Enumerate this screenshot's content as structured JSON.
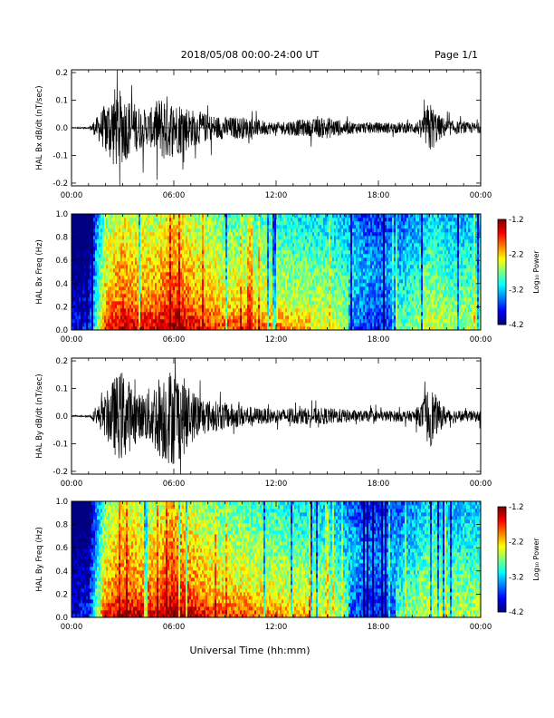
{
  "header": {
    "title": "2018/05/08  00:00-24:00 UT",
    "page": "Page 1/1"
  },
  "footer": {
    "xlabel": "Universal Time (hh:mm)"
  },
  "chart_data": [
    {
      "type": "line",
      "ylabel": "HAL Bx dB/dt (nT/sec)",
      "xlim": [
        "00:00",
        "24:00"
      ],
      "ylim": [
        -0.21,
        0.21
      ],
      "yticks": [
        "-0.2",
        "-0.1",
        "0.0",
        "0.1",
        "0.2"
      ],
      "xticks": [
        "00:00",
        "06:00",
        "12:00",
        "18:00",
        "00:00"
      ],
      "envelope_hours": [
        0,
        1,
        1.5,
        2,
        2.5,
        3,
        3.5,
        4,
        4.5,
        5,
        5.5,
        6,
        6.5,
        7,
        7.5,
        8,
        9,
        10,
        11,
        12,
        13,
        14,
        15,
        16,
        17,
        18,
        19,
        20,
        20.5,
        21,
        21.5,
        22,
        23,
        24
      ],
      "envelope_nTs": [
        0.002,
        0.003,
        0.04,
        0.09,
        0.15,
        0.13,
        0.1,
        0.08,
        0.06,
        0.1,
        0.13,
        0.09,
        0.1,
        0.07,
        0.06,
        0.05,
        0.04,
        0.04,
        0.03,
        0.02,
        0.03,
        0.03,
        0.04,
        0.025,
        0.02,
        0.02,
        0.02,
        0.02,
        0.03,
        0.1,
        0.05,
        0.03,
        0.02,
        0.02
      ]
    },
    {
      "type": "heatmap",
      "ylabel": "HAL Bx Freq (Hz)",
      "ylim": [
        0,
        1.0
      ],
      "yticks": [
        "0.0",
        "0.2",
        "0.4",
        "0.6",
        "0.8",
        "1.0"
      ],
      "xticks": [
        "00:00",
        "06:00",
        "12:00",
        "18:00",
        "00:00"
      ],
      "colorbar": {
        "label": "Log₁₀ Power",
        "ticks": [
          "-1.2",
          "-2.2",
          "-3.2",
          "-4.2"
        ],
        "range": [
          -4.2,
          -1.2
        ]
      },
      "activity_hours": [
        0,
        1,
        1.5,
        2,
        3,
        4,
        5,
        6,
        7,
        8,
        9,
        10,
        11,
        12,
        13,
        14,
        15,
        16,
        17,
        18,
        19,
        20,
        21,
        22,
        23,
        24
      ],
      "activity_level": [
        0.1,
        0.15,
        0.5,
        0.75,
        0.85,
        0.8,
        0.8,
        0.9,
        0.8,
        0.75,
        0.7,
        0.7,
        0.68,
        0.65,
        0.62,
        0.6,
        0.6,
        0.55,
        0.45,
        0.4,
        0.45,
        0.5,
        0.6,
        0.55,
        0.55,
        0.55
      ]
    },
    {
      "type": "line",
      "ylabel": "HAL By dB/dt (nT/sec)",
      "xlim": [
        "00:00",
        "24:00"
      ],
      "ylim": [
        -0.21,
        0.21
      ],
      "yticks": [
        "-0.2",
        "-0.1",
        "0.0",
        "0.1",
        "0.2"
      ],
      "xticks": [
        "00:00",
        "06:00",
        "12:00",
        "18:00",
        "00:00"
      ],
      "envelope_hours": [
        0,
        1,
        1.5,
        2,
        2.5,
        3,
        3.5,
        4,
        4.5,
        5,
        5.5,
        6,
        6.5,
        7,
        7.5,
        8,
        9,
        10,
        11,
        12,
        13,
        14,
        15,
        16,
        17,
        18,
        19,
        20,
        20.5,
        21,
        21.5,
        22,
        23,
        24
      ],
      "envelope_nTs": [
        0.002,
        0.003,
        0.03,
        0.08,
        0.14,
        0.17,
        0.12,
        0.08,
        0.1,
        0.14,
        0.17,
        0.18,
        0.15,
        0.1,
        0.08,
        0.06,
        0.05,
        0.04,
        0.03,
        0.025,
        0.03,
        0.03,
        0.03,
        0.025,
        0.02,
        0.02,
        0.02,
        0.02,
        0.04,
        0.12,
        0.06,
        0.03,
        0.02,
        0.02
      ]
    },
    {
      "type": "heatmap",
      "ylabel": "HAL By Freq (Hz)",
      "ylim": [
        0,
        1.0
      ],
      "yticks": [
        "0.0",
        "0.2",
        "0.4",
        "0.6",
        "0.8",
        "1.0"
      ],
      "xticks": [
        "00:00",
        "06:00",
        "12:00",
        "18:00",
        "00:00"
      ],
      "colorbar": {
        "label": "Log₁₀ Power",
        "ticks": [
          "-1.2",
          "-2.2",
          "-3.2",
          "-4.2"
        ],
        "range": [
          -4.2,
          -1.2
        ]
      },
      "activity_hours": [
        0,
        1,
        1.5,
        2,
        3,
        4,
        5,
        6,
        7,
        8,
        9,
        10,
        11,
        12,
        13,
        14,
        15,
        16,
        17,
        18,
        19,
        20,
        21,
        22,
        23,
        24
      ],
      "activity_level": [
        0.1,
        0.15,
        0.5,
        0.75,
        0.85,
        0.8,
        0.8,
        0.92,
        0.82,
        0.75,
        0.7,
        0.7,
        0.68,
        0.65,
        0.62,
        0.6,
        0.58,
        0.5,
        0.42,
        0.38,
        0.45,
        0.5,
        0.6,
        0.55,
        0.55,
        0.55
      ]
    }
  ]
}
